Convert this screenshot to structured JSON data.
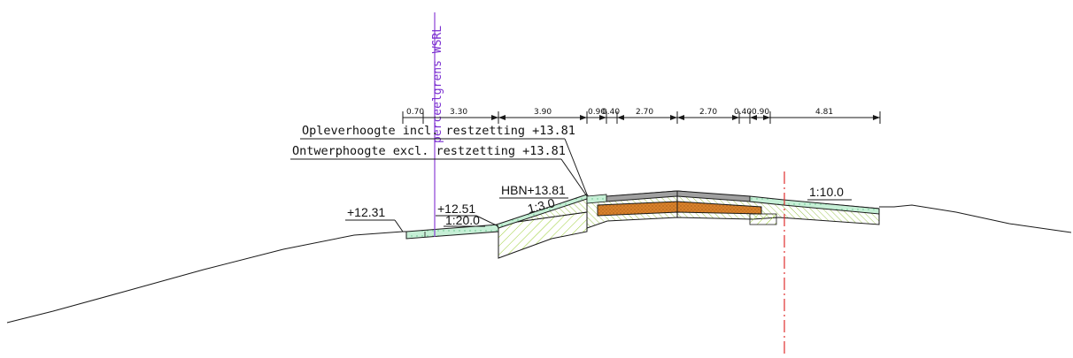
{
  "labels": {
    "boundary": "perceelgrens WSRL",
    "oplever": "Opleverhoogte incl. restzetting +13.81",
    "ontwerp": "Ontwerphoogte excl. restzetting +13.81",
    "hbn": "HBN+13.81",
    "slope_1_3": "1:3.0",
    "elev_12_51": "+12.51",
    "slope_1_20": "1:20.0",
    "elev_12_31": "+12.31",
    "slope_1_10": "1:10.0"
  },
  "dimensions": [
    "0.70",
    "3.30",
    "3.90",
    "0.90",
    "0.40",
    "2.70",
    "2.70",
    "0.40",
    "0.90",
    "4.81"
  ],
  "colors": {
    "line": "#1a1a1a",
    "boundary": "#8b3fd6",
    "axis": "#e03030",
    "green_fill": "#c6efd6",
    "green_edge": "#2aa05a",
    "hatch": "#9acd32",
    "asphalt": "#a0a0a0",
    "foundation": "#d9822b"
  }
}
